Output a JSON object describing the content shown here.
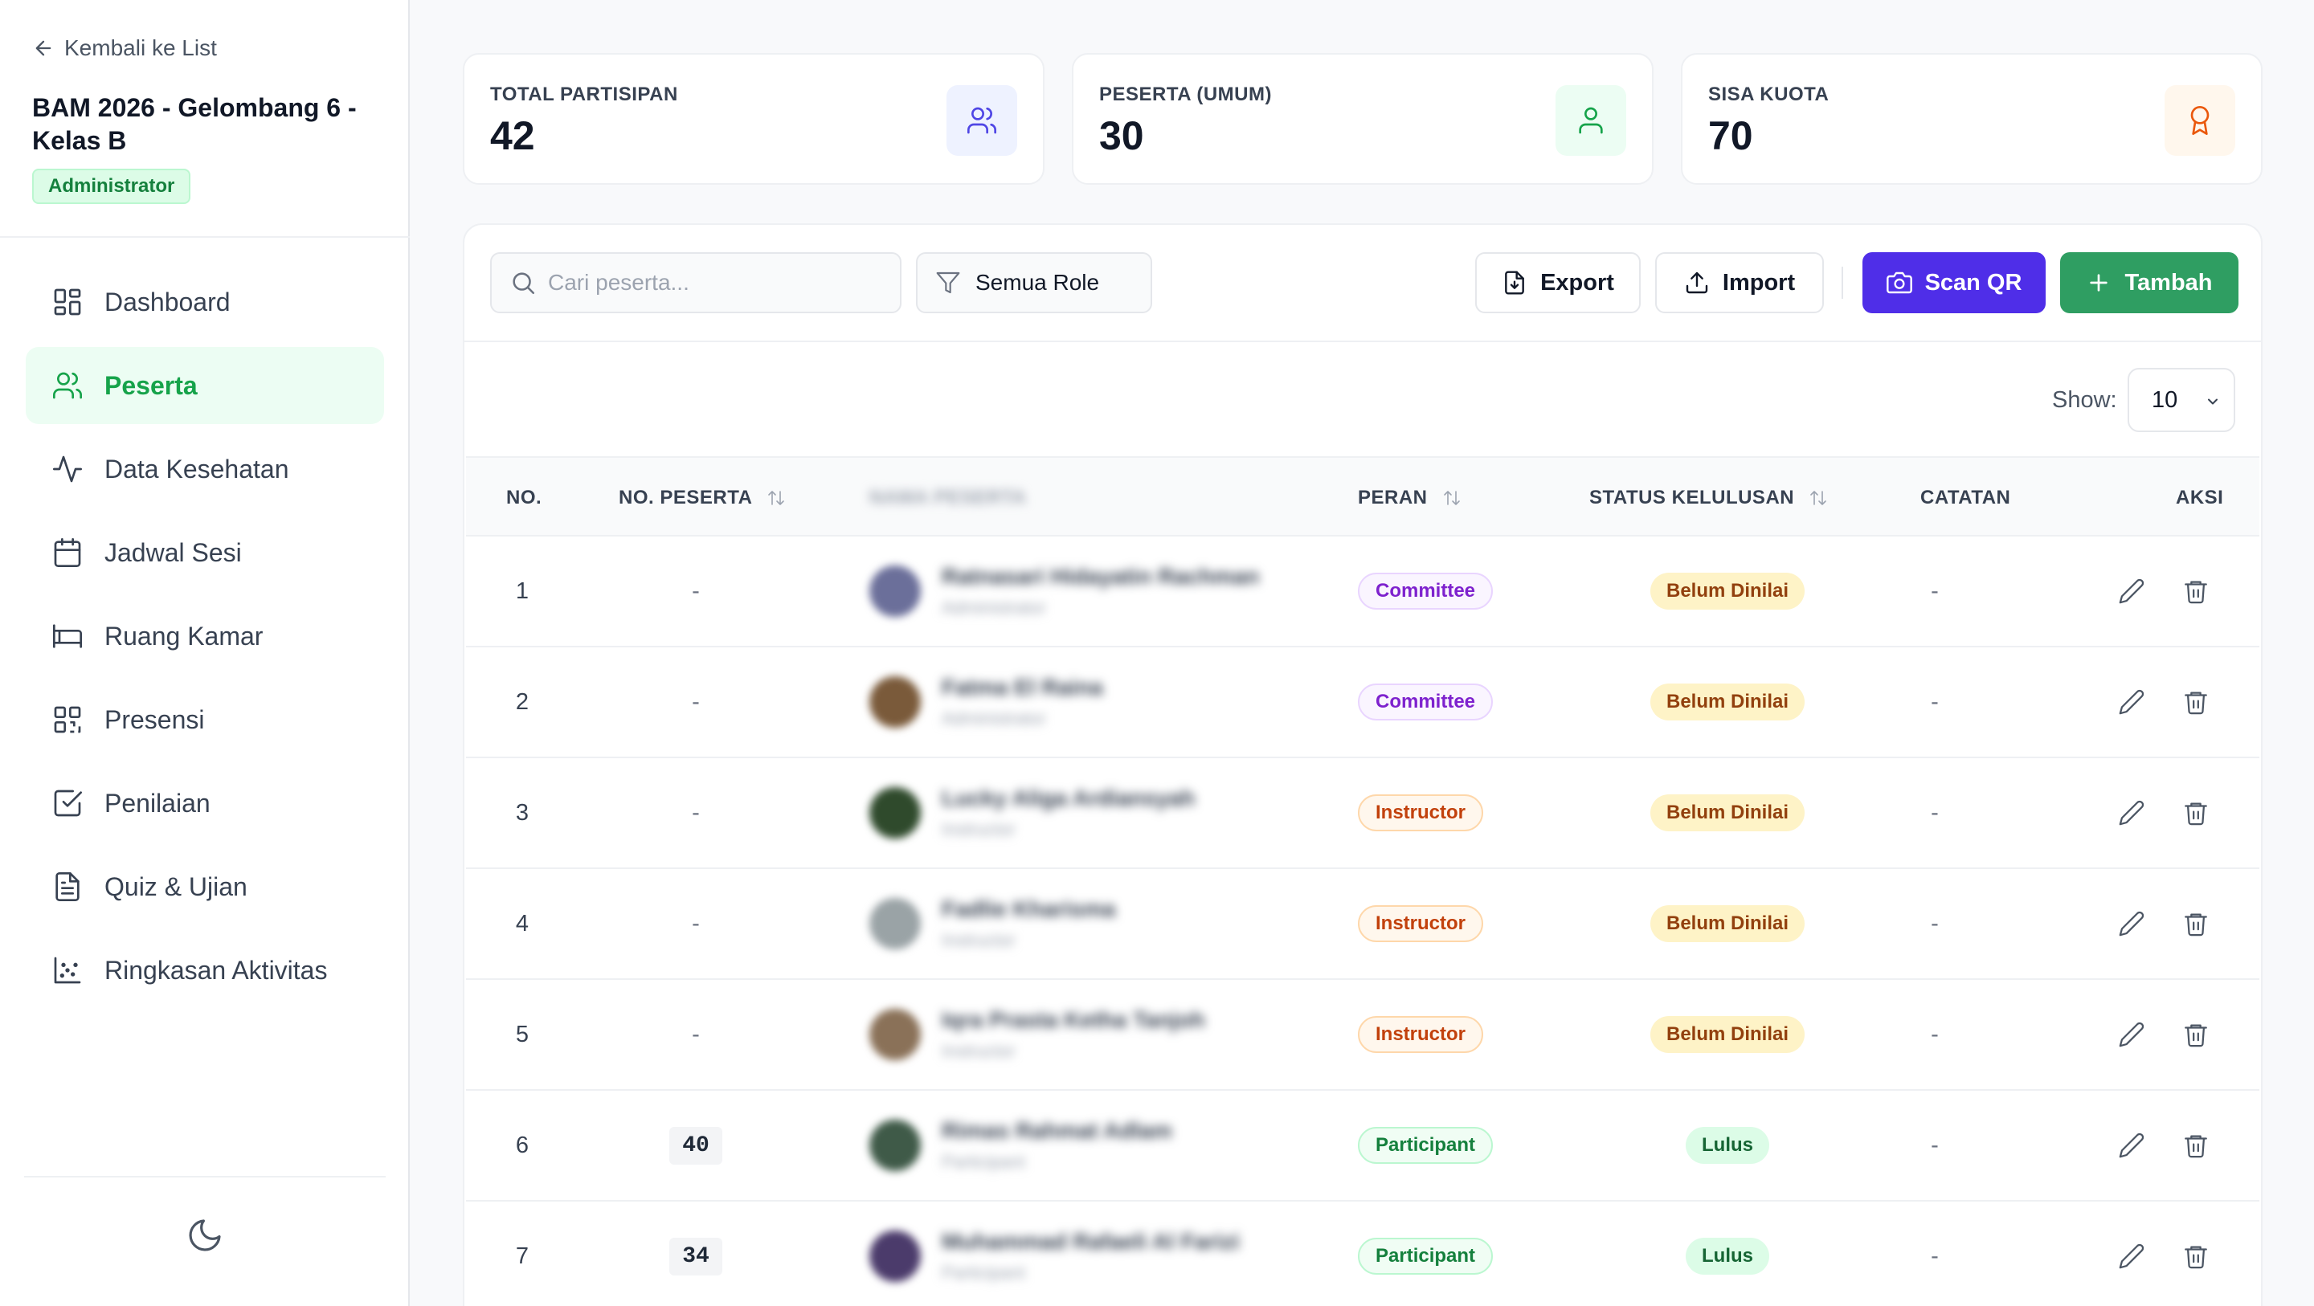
{
  "sidebar": {
    "back_label": "Kembali ke List",
    "event_title": "BAM 2026 - Gelombang 6 - Kelas B",
    "role_badge": "Administrator",
    "nav": [
      {
        "label": "Dashboard",
        "icon": "dashboard-icon",
        "active": false
      },
      {
        "label": "Peserta",
        "icon": "users-icon",
        "active": true
      },
      {
        "label": "Data Kesehatan",
        "icon": "activity-icon",
        "active": false
      },
      {
        "label": "Jadwal Sesi",
        "icon": "calendar-icon",
        "active": false
      },
      {
        "label": "Ruang Kamar",
        "icon": "bed-icon",
        "active": false
      },
      {
        "label": "Presensi",
        "icon": "qr-code-icon",
        "active": false
      },
      {
        "label": "Penilaian",
        "icon": "checkbox-icon",
        "active": false
      },
      {
        "label": "Quiz & Ujian",
        "icon": "document-icon",
        "active": false
      },
      {
        "label": "Ringkasan Aktivitas",
        "icon": "scatter-chart-icon",
        "active": false
      }
    ],
    "theme_toggle_icon": "moon-icon"
  },
  "stats": [
    {
      "label": "TOTAL PARTISIPAN",
      "value": "42",
      "icon": "users-icon",
      "color": "#4f46e5",
      "bg": "#eef2ff"
    },
    {
      "label": "PESERTA (UMUM)",
      "value": "30",
      "icon": "user-icon",
      "color": "#16a34a",
      "bg": "#ecfdf3"
    },
    {
      "label": "SISA KUOTA",
      "value": "70",
      "icon": "award-icon",
      "color": "#ea580c",
      "bg": "#fff7ed"
    }
  ],
  "toolbar": {
    "search_placeholder": "Cari peserta...",
    "filter_label": "Semua Role",
    "export_label": "Export",
    "import_label": "Import",
    "scan_label": "Scan QR",
    "add_label": "Tambah",
    "show_label": "Show:",
    "show_value": "10"
  },
  "colors": {
    "accent_green": "#2f9e62",
    "scan_purple": "#4f2ee8"
  },
  "table": {
    "headers": {
      "no": "NO.",
      "no_peserta": "NO. PESERTA",
      "nama": "NAMA PESERTA",
      "peran": "PERAN",
      "status": "STATUS KELULUSAN",
      "catatan": "CATATAN",
      "aksi": "AKSI"
    },
    "rows": [
      {
        "no": "1",
        "no_peserta": "-",
        "name": "Ratnasari Hidayatin Rachman",
        "sub": "Administrator",
        "role": "Committee",
        "role_class": "committee",
        "status": "Belum Dinilai",
        "status_class": "pending",
        "catatan": "-",
        "avatar": "#6b6f9a"
      },
      {
        "no": "2",
        "no_peserta": "-",
        "name": "Fatma El Raina",
        "sub": "Administrator",
        "role": "Committee",
        "role_class": "committee",
        "status": "Belum Dinilai",
        "status_class": "pending",
        "catatan": "-",
        "avatar": "#7a5a3a"
      },
      {
        "no": "3",
        "no_peserta": "-",
        "name": "Lucky Aliga Ardiansyah",
        "sub": "Instructor",
        "role": "Instructor",
        "role_class": "instructor",
        "status": "Belum Dinilai",
        "status_class": "pending",
        "catatan": "-",
        "avatar": "#2f4a2c"
      },
      {
        "no": "4",
        "no_peserta": "-",
        "name": "Fadlie Kharisma",
        "sub": "Instructor",
        "role": "Instructor",
        "role_class": "instructor",
        "status": "Belum Dinilai",
        "status_class": "pending",
        "catatan": "-",
        "avatar": "#9aa3a6"
      },
      {
        "no": "5",
        "no_peserta": "-",
        "name": "Iqra Prasta Ketha Tanjoh",
        "sub": "Instructor",
        "role": "Instructor",
        "role_class": "instructor",
        "status": "Belum Dinilai",
        "status_class": "pending",
        "catatan": "-",
        "avatar": "#8a7158"
      },
      {
        "no": "6",
        "no_peserta": "40",
        "name": "Rimas Rahmat Adlam",
        "sub": "Participant",
        "role": "Participant",
        "role_class": "participant",
        "status": "Lulus",
        "status_class": "pass",
        "catatan": "-",
        "avatar": "#3f5a48"
      },
      {
        "no": "7",
        "no_peserta": "34",
        "name": "Muhammad Rafaeli Al Farizi",
        "sub": "Participant",
        "role": "Participant",
        "role_class": "participant",
        "status": "Lulus",
        "status_class": "pass",
        "catatan": "-",
        "avatar": "#4b3b6b"
      }
    ]
  }
}
